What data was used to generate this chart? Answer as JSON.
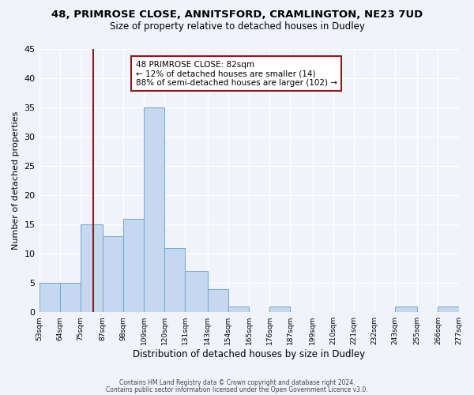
{
  "title_line1": "48, PRIMROSE CLOSE, ANNITSFORD, CRAMLINGTON, NE23 7UD",
  "title_line2": "Size of property relative to detached houses in Dudley",
  "xlabel": "Distribution of detached houses by size in Dudley",
  "ylabel": "Number of detached properties",
  "bar_edges": [
    53,
    64,
    75,
    87,
    98,
    109,
    120,
    131,
    143,
    154,
    165,
    176,
    187,
    199,
    210,
    221,
    232,
    243,
    255,
    266,
    277
  ],
  "bar_heights": [
    5,
    5,
    15,
    13,
    16,
    35,
    11,
    7,
    4,
    1,
    0,
    1,
    0,
    0,
    0,
    0,
    0,
    1,
    0,
    1
  ],
  "bar_color": "#c5d8f0",
  "bar_edgecolor": "#7aadd4",
  "vline_x": 82,
  "vline_color": "#8b1a1a",
  "annotation_title": "48 PRIMROSE CLOSE: 82sqm",
  "annotation_line2": "← 12% of detached houses are smaller (14)",
  "annotation_line3": "88% of semi-detached houses are larger (102) →",
  "annotation_box_color": "#8b1a1a",
  "ylim": [
    0,
    45
  ],
  "yticks": [
    0,
    5,
    10,
    15,
    20,
    25,
    30,
    35,
    40,
    45
  ],
  "tick_labels": [
    "53sqm",
    "64sqm",
    "75sqm",
    "87sqm",
    "98sqm",
    "109sqm",
    "120sqm",
    "131sqm",
    "143sqm",
    "154sqm",
    "165sqm",
    "176sqm",
    "187sqm",
    "199sqm",
    "210sqm",
    "221sqm",
    "232sqm",
    "243sqm",
    "255sqm",
    "266sqm",
    "277sqm"
  ],
  "footer_line1": "Contains HM Land Registry data © Crown copyright and database right 2024.",
  "footer_line2": "Contains public sector information licensed under the Open Government Licence v3.0.",
  "bg_color": "#f0f4fa",
  "grid_color": "#ffffff"
}
